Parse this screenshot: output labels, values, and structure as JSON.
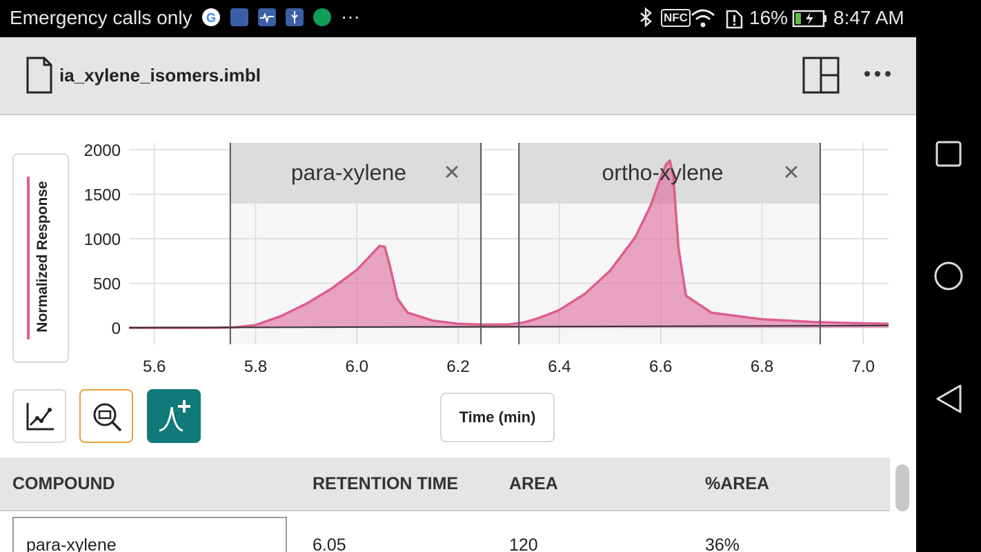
{
  "status_bar": {
    "carrier": "Emergency calls only",
    "nfc": "NFC",
    "battery_percent": "16%",
    "time": "8:47 AM",
    "overflow": "···"
  },
  "toolbar": {
    "file_name": "ia_xylene_isomers.imbl",
    "icons": [
      "document-icon",
      "layout-icon",
      "more-vert-icon"
    ]
  },
  "chart": {
    "y_axis_label": "Normalized Response",
    "x_axis_label": "Time (min)",
    "close_glyph": "✕"
  },
  "chart_data": {
    "type": "area",
    "xlabel": "Time (min)",
    "ylabel": "Normalized Response",
    "xlim": [
      5.55,
      7.05
    ],
    "ylim": [
      -100,
      2050
    ],
    "x_ticks": [
      "5.6",
      "5.8",
      "6.0",
      "6.2",
      "6.4",
      "6.6",
      "6.8",
      "7.0"
    ],
    "y_ticks": [
      "0",
      "500",
      "1000",
      "1500",
      "2000"
    ],
    "grid": true,
    "series": [
      {
        "color": "#dc5e8f",
        "x": [
          5.55,
          5.72,
          5.76,
          5.8,
          5.85,
          5.9,
          5.95,
          6.0,
          6.03,
          6.045,
          6.055,
          6.065,
          6.08,
          6.1,
          6.15,
          6.2,
          6.25,
          6.3,
          6.33,
          6.36,
          6.4,
          6.45,
          6.5,
          6.55,
          6.58,
          6.6,
          6.61,
          6.618,
          6.625,
          6.635,
          6.65,
          6.7,
          6.8,
          6.9,
          7.0,
          7.05
        ],
        "y": [
          0,
          0,
          5,
          30,
          130,
          270,
          440,
          650,
          830,
          920,
          910,
          700,
          330,
          170,
          80,
          45,
          35,
          38,
          60,
          110,
          200,
          380,
          640,
          1020,
          1370,
          1690,
          1830,
          1880,
          1700,
          900,
          360,
          170,
          95,
          65,
          50,
          45
        ]
      }
    ],
    "peak_regions": [
      {
        "label": "para-xylene",
        "start": 5.75,
        "end": 6.245
      },
      {
        "label": "ortho-xylene",
        "start": 6.32,
        "end": 6.915
      }
    ],
    "baseline": {
      "color": "#333333",
      "x": [
        5.55,
        7.05
      ],
      "y": [
        0,
        25
      ]
    }
  },
  "tools": [
    {
      "name": "plot-tool-button",
      "icon": "line-chart-icon",
      "active": false
    },
    {
      "name": "zoom-tool-button",
      "icon": "zoom-icon",
      "active": true
    },
    {
      "name": "add-peak-button",
      "icon": "add-peak-icon",
      "active": false
    }
  ],
  "table": {
    "headers": [
      "COMPOUND",
      "RETENTION TIME",
      "AREA",
      "%AREA"
    ],
    "rows": [
      {
        "compound": "para-xylene",
        "retention_time": "6.05",
        "area": "120",
        "percent_area": "36%"
      }
    ]
  },
  "colors": {
    "accent_teal": "#0f7a78",
    "peak_pink": "#dc5e8f",
    "selection_orange": "#e8a23a"
  }
}
